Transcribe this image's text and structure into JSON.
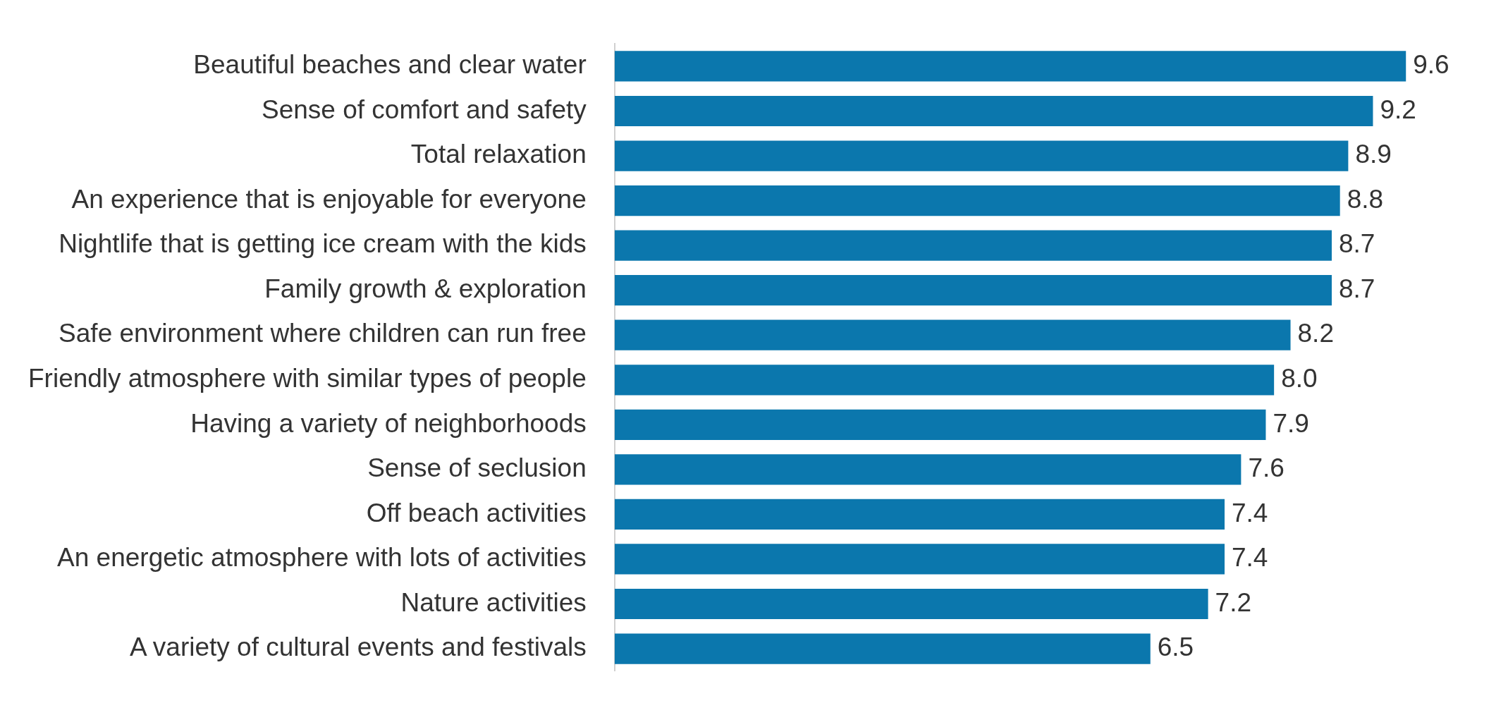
{
  "chart_data": {
    "type": "bar",
    "orientation": "horizontal",
    "categories": [
      "Beautiful beaches and clear water",
      "Sense of comfort and safety",
      "Total relaxation",
      "An experience that is enjoyable for everyone",
      "Nightlife that is getting ice cream with the kids",
      "Family growth & exploration",
      "Safe environment where children can run free",
      "Friendly atmosphere with similar types of people",
      "Having a variety of neighborhoods",
      "Sense of seclusion",
      "Off beach activities",
      "An energetic atmosphere with lots of activities",
      "Nature activities",
      "A variety of cultural events and festivals"
    ],
    "values": [
      9.6,
      9.2,
      8.9,
      8.8,
      8.7,
      8.7,
      8.2,
      8.0,
      7.9,
      7.6,
      7.4,
      7.4,
      7.2,
      6.5
    ],
    "value_labels": [
      "9.6",
      "9.2",
      "8.9",
      "8.8",
      "8.7",
      "8.7",
      "8.2",
      "8.0",
      "7.9",
      "7.6",
      "7.4",
      "7.4",
      "7.2",
      "6.5"
    ],
    "color": "#0b77ad",
    "tick_labels": "y",
    "legend": false
  }
}
